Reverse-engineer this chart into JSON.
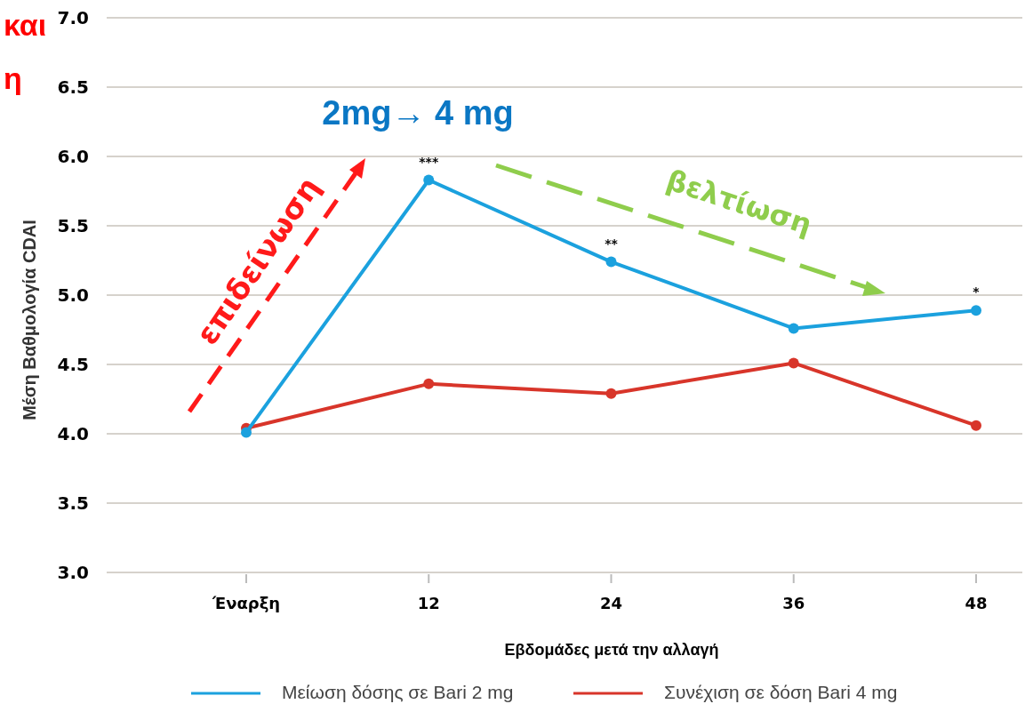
{
  "chart_data": {
    "type": "line",
    "xlabel": "Εβδομάδες μετά την αλλαγή",
    "ylabel": "Μέση Βαθμολογία CDAI",
    "categories": [
      "Έναρξη",
      "12",
      "24",
      "36",
      "48"
    ],
    "series": [
      {
        "name": "Μείωση δόσης σε Bari 2 mg",
        "color": "#1ba1de",
        "values": [
          4.01,
          5.83,
          5.24,
          4.76,
          4.89
        ]
      },
      {
        "name": "Συνέχιση σε δόση Bari 4 mg",
        "color": "#d8352a",
        "values": [
          4.04,
          4.36,
          4.29,
          4.51,
          4.06
        ]
      }
    ],
    "ylim": [
      3.0,
      7.0
    ],
    "yticks": [
      {
        "value": 3,
        "label": "3.0"
      },
      3.5,
      {
        "value": 4,
        "label": "4.0"
      },
      4.5,
      {
        "value": 5,
        "label": "5.0"
      },
      5.5,
      {
        "value": 6,
        "label": "6.0"
      },
      6.5,
      {
        "value": 7,
        "label": "7.0"
      }
    ],
    "grid": "y",
    "legend": "bottom",
    "marker": "circle",
    "line_style": "solid",
    "annotations": [
      {
        "text": "***",
        "x": "12",
        "y": 5.83
      },
      {
        "text": "**",
        "x": "24",
        "y": 5.24
      },
      {
        "text": "*",
        "x": "48",
        "y": 4.89
      },
      "2mg→ 4 mg",
      "επιδείνωση",
      "βελτίωση",
      "και",
      "η"
    ]
  }
}
